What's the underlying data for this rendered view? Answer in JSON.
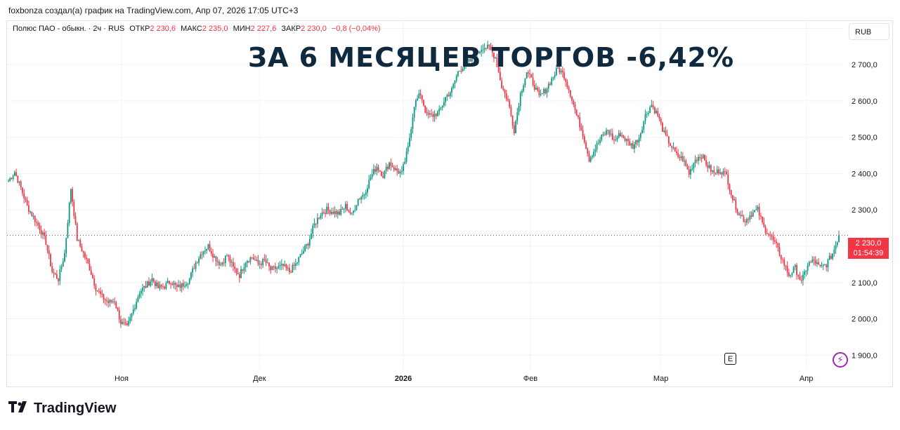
{
  "attribution": "foxbonza создал(а) график на TradingView.com, Апр 07, 2026 17:05 UTC+3",
  "legend": {
    "symbol": "Полюс ПАО - обыкн. · 2ч · RUS",
    "open_label": "ОТКР",
    "open_value": "2 230,6",
    "high_label": "МАКС",
    "high_value": "2 235,0",
    "low_label": "МИН",
    "low_value": "2 227,6",
    "close_label": "ЗАКР",
    "close_value": "2 230,0",
    "change": "−0,8 (−0,04%)"
  },
  "currency": "RUB",
  "headline": "ЗА 6 МЕСЯЦЕВ ТОРГОВ -6,42%",
  "price_tag": {
    "price": "2 230,0",
    "countdown": "01:54:39"
  },
  "event_marker": "E",
  "brand": "TradingView",
  "colors": {
    "up": "#089981",
    "down": "#f23645",
    "grid": "#f0f3fa",
    "headline": "#0f2a3f"
  },
  "chart_data": {
    "type": "candlestick",
    "ylim": [
      1860,
      2820
    ],
    "y_ticks": [
      "2 800,0",
      "2 700,0",
      "2 600,0",
      "2 500,0",
      "2 400,0",
      "2 300,0",
      "2 200,0",
      "2 100,0",
      "2 000,0",
      "1 900,0"
    ],
    "y_tick_values": [
      2800,
      2700,
      2600,
      2500,
      2400,
      2300,
      2200,
      2100,
      2000,
      1900
    ],
    "x_ticks": [
      {
        "label": "Ноя",
        "x": 0.137,
        "bold": false
      },
      {
        "label": "Дек",
        "x": 0.302,
        "bold": false
      },
      {
        "label": "2026",
        "x": 0.474,
        "bold": true
      },
      {
        "label": "Фев",
        "x": 0.626,
        "bold": false
      },
      {
        "label": "Мар",
        "x": 0.782,
        "bold": false
      },
      {
        "label": "Апр",
        "x": 0.956,
        "bold": false
      }
    ],
    "last_price": 2230,
    "closes": [
      2380,
      2405,
      2360,
      2310,
      2280,
      2250,
      2210,
      2130,
      2110,
      2180,
      2360,
      2220,
      2180,
      2140,
      2085,
      2060,
      2045,
      2050,
      1990,
      1975,
      2025,
      2075,
      2090,
      2110,
      2085,
      2090,
      2105,
      2085,
      2095,
      2110,
      2155,
      2185,
      2200,
      2170,
      2150,
      2175,
      2140,
      2120,
      2160,
      2170,
      2150,
      2160,
      2135,
      2140,
      2145,
      2130,
      2150,
      2180,
      2210,
      2260,
      2290,
      2300,
      2295,
      2290,
      2310,
      2285,
      2330,
      2345,
      2390,
      2420,
      2395,
      2430,
      2410,
      2400,
      2470,
      2590,
      2620,
      2560,
      2560,
      2570,
      2610,
      2630,
      2680,
      2700,
      2710,
      2730,
      2750,
      2745,
      2720,
      2640,
      2600,
      2520,
      2620,
      2680,
      2650,
      2610,
      2630,
      2660,
      2690,
      2670,
      2620,
      2560,
      2510,
      2440,
      2470,
      2500,
      2520,
      2490,
      2510,
      2490,
      2475,
      2500,
      2560,
      2590,
      2560,
      2510,
      2480,
      2450,
      2440,
      2400,
      2440,
      2450,
      2420,
      2400,
      2410,
      2395,
      2330,
      2290,
      2270,
      2290,
      2300,
      2250,
      2230,
      2200,
      2160,
      2120,
      2140,
      2100,
      2150,
      2160,
      2140,
      2150,
      2180,
      2230
    ]
  }
}
